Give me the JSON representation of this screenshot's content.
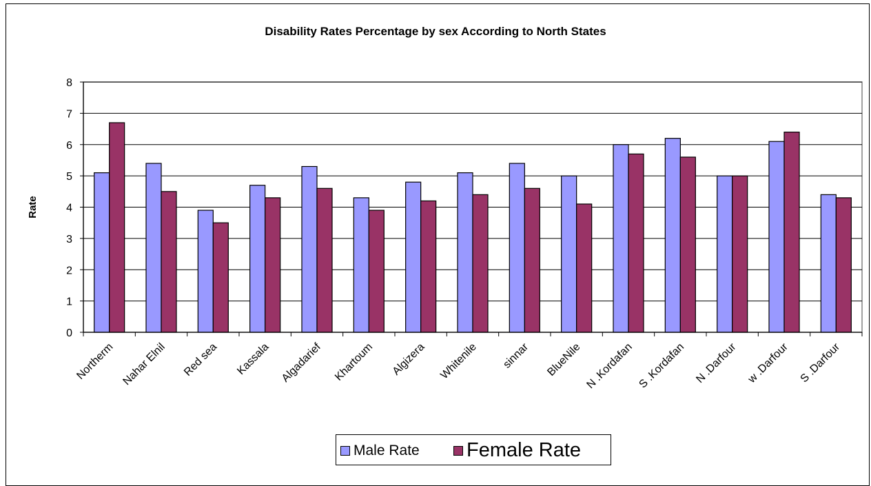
{
  "chart_data": {
    "type": "bar",
    "title": "Disability Rates Percentage by sex According to North States",
    "xlabel": "",
    "ylabel": "Rate",
    "ylim": [
      0,
      8
    ],
    "yticks": [
      "0",
      "1",
      "2",
      "3",
      "4",
      "5",
      "6",
      "7",
      "8"
    ],
    "grid": true,
    "legend_position": "bottom",
    "categories": [
      "Northerm",
      "Nahar Elnil",
      "Red sea",
      "Kassala",
      "Algadarief",
      "Khartoum",
      "Algizera",
      "Whitenile",
      "sinnar",
      "BlueNile",
      "N .Kordafan",
      "S .Kordafan",
      "N .Darfour",
      "w .Darfour",
      "S .Darfour"
    ],
    "series": [
      {
        "name": "Male Rate",
        "color": "#9999ff",
        "values": [
          5.1,
          5.4,
          3.9,
          4.7,
          5.3,
          4.3,
          4.8,
          5.1,
          5.4,
          5.0,
          6.0,
          6.2,
          5.0,
          6.1,
          4.4
        ]
      },
      {
        "name": "Female Rate",
        "color": "#993366",
        "values": [
          6.7,
          4.5,
          3.5,
          4.3,
          4.6,
          3.9,
          4.2,
          4.4,
          4.6,
          4.1,
          5.7,
          5.6,
          5.0,
          6.4,
          4.3
        ]
      }
    ]
  }
}
